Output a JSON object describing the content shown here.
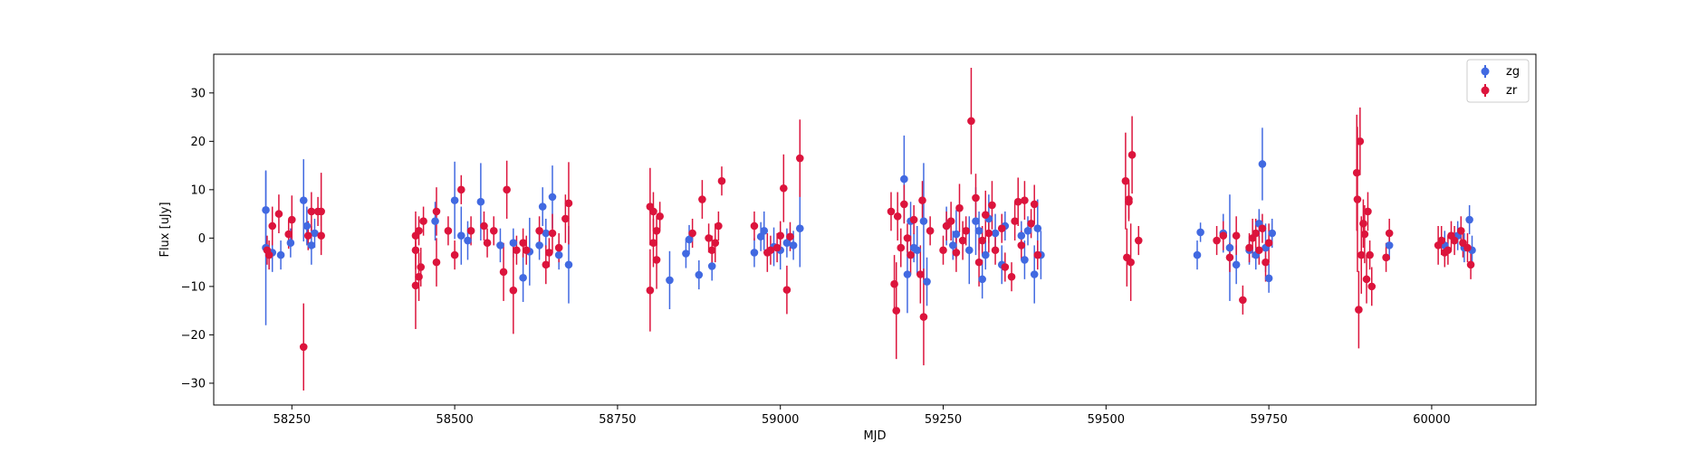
{
  "chart_data": {
    "type": "scatter",
    "title": "",
    "xlabel": "MJD",
    "ylabel": "Flux [uJy]",
    "xlim": [
      58130,
      60160
    ],
    "ylim": [
      -34.5,
      38
    ],
    "xticks": [
      58250,
      58500,
      58750,
      59000,
      59250,
      59500,
      59750,
      60000
    ],
    "yticks": [
      -30,
      -20,
      -10,
      0,
      10,
      20,
      30
    ],
    "grid": false,
    "legend_position": "top-right",
    "series": [
      {
        "name": "zg",
        "color": "#4169e1",
        "points": [
          [
            58210,
            5.8,
            8.0
          ],
          [
            58210,
            -2.0,
            16.0
          ],
          [
            58220,
            -3.0,
            4.0
          ],
          [
            58233,
            -3.5,
            3.0
          ],
          [
            58248,
            -1.0,
            3.0
          ],
          [
            58268,
            7.8,
            8.5
          ],
          [
            58273,
            2.5,
            4.0
          ],
          [
            58280,
            -1.5,
            4.0
          ],
          [
            58285,
            1.0,
            3.0
          ],
          [
            58470,
            3.5,
            4.0
          ],
          [
            58500,
            7.8,
            8.0
          ],
          [
            58510,
            0.5,
            6.0
          ],
          [
            58520,
            -0.5,
            4.0
          ],
          [
            58540,
            7.5,
            8.0
          ],
          [
            58570,
            -1.5,
            3.5
          ],
          [
            58590,
            -1.0,
            3.0
          ],
          [
            58605,
            -8.2,
            5.0
          ],
          [
            58615,
            -2.8,
            7.0
          ],
          [
            58630,
            -1.5,
            3.0
          ],
          [
            58635,
            6.5,
            4.0
          ],
          [
            58640,
            1.0,
            3.0
          ],
          [
            58650,
            8.5,
            6.5
          ],
          [
            58660,
            -3.5,
            3.0
          ],
          [
            58675,
            -5.5,
            8.0
          ],
          [
            58830,
            -8.7,
            6.0
          ],
          [
            58855,
            -3.2,
            3.0
          ],
          [
            58860,
            -0.3,
            3.0
          ],
          [
            58875,
            -7.6,
            3.0
          ],
          [
            58895,
            -5.8,
            3.0
          ],
          [
            58960,
            -3.0,
            3.0
          ],
          [
            58970,
            0.3,
            3.0
          ],
          [
            58975,
            1.5,
            4.0
          ],
          [
            58990,
            -1.8,
            4.0
          ],
          [
            59000,
            -2.5,
            4.0
          ],
          [
            59010,
            -1.0,
            3.0
          ],
          [
            59020,
            -1.5,
            3.0
          ],
          [
            59030,
            2.0,
            8.0
          ],
          [
            59190,
            12.2,
            9.0
          ],
          [
            59195,
            -7.5,
            8.0
          ],
          [
            59200,
            3.5,
            4.0
          ],
          [
            59205,
            -2.0,
            3.0
          ],
          [
            59210,
            -2.5,
            5.0
          ],
          [
            59220,
            3.5,
            12.0
          ],
          [
            59225,
            -9.0,
            5.0
          ],
          [
            59255,
            2.5,
            4.0
          ],
          [
            59265,
            -1.5,
            3.0
          ],
          [
            59270,
            0.8,
            5.0
          ],
          [
            59290,
            -2.5,
            7.0
          ],
          [
            59300,
            3.5,
            7.0
          ],
          [
            59305,
            1.5,
            4.0
          ],
          [
            59310,
            -8.5,
            4.0
          ],
          [
            59315,
            -3.5,
            3.0
          ],
          [
            59320,
            4.0,
            5.0
          ],
          [
            59330,
            1.0,
            4.0
          ],
          [
            59340,
            -5.5,
            4.0
          ],
          [
            59345,
            2.5,
            3.0
          ],
          [
            59370,
            0.5,
            3.0
          ],
          [
            59375,
            -4.5,
            4.0
          ],
          [
            59380,
            1.5,
            3.0
          ],
          [
            59390,
            -7.5,
            6.0
          ],
          [
            59395,
            2.0,
            6.0
          ],
          [
            59400,
            -3.5,
            5.0
          ],
          [
            59640,
            -3.5,
            3.0
          ],
          [
            59645,
            1.2,
            2.0
          ],
          [
            59680,
            1.0,
            4.0
          ],
          [
            59690,
            -2.0,
            11.0
          ],
          [
            59700,
            -5.5,
            4.0
          ],
          [
            59720,
            -2.5,
            3.0
          ],
          [
            59730,
            -3.5,
            3.0
          ],
          [
            59735,
            3.0,
            3.0
          ],
          [
            59740,
            15.3,
            7.5
          ],
          [
            59745,
            -2.0,
            5.0
          ],
          [
            59750,
            -8.3,
            3.0
          ],
          [
            59755,
            1.0,
            3.0
          ],
          [
            59935,
            -1.5,
            3.0
          ],
          [
            60020,
            -1.5,
            3.0
          ],
          [
            60040,
            0.5,
            3.0
          ],
          [
            60050,
            -2.0,
            3.0
          ],
          [
            60058,
            3.8,
            3.0
          ],
          [
            60062,
            -2.5,
            3.0
          ]
        ]
      },
      {
        "name": "zr",
        "color": "#dc143c",
        "points": [
          [
            58212,
            -2.5,
            3.0
          ],
          [
            58215,
            -3.5,
            3.0
          ],
          [
            58220,
            2.5,
            4.0
          ],
          [
            58230,
            5.0,
            4.0
          ],
          [
            58245,
            0.8,
            3.0
          ],
          [
            58250,
            3.8,
            5.0
          ],
          [
            58268,
            -22.5,
            9.0
          ],
          [
            58275,
            0.5,
            3.0
          ],
          [
            58280,
            5.5,
            4.0
          ],
          [
            58290,
            5.5,
            3.0
          ],
          [
            58295,
            0.5,
            4.0
          ],
          [
            58295,
            5.5,
            8.0
          ],
          [
            58440,
            -9.8,
            9.0
          ],
          [
            58440,
            -2.5,
            4.0
          ],
          [
            58440,
            0.5,
            5.0
          ],
          [
            58445,
            1.5,
            3.0
          ],
          [
            58445,
            -8.0,
            5.0
          ],
          [
            58448,
            -6.0,
            4.0
          ],
          [
            58452,
            3.5,
            3.0
          ],
          [
            58472,
            5.5,
            5.0
          ],
          [
            58472,
            -5.0,
            5.0
          ],
          [
            58490,
            1.5,
            3.0
          ],
          [
            58500,
            -3.5,
            3.0
          ],
          [
            58510,
            10.0,
            3.0
          ],
          [
            58525,
            1.5,
            3.0
          ],
          [
            58545,
            2.5,
            3.0
          ],
          [
            58550,
            -1.0,
            3.0
          ],
          [
            58560,
            1.5,
            3.0
          ],
          [
            58575,
            -7.0,
            6.0
          ],
          [
            58580,
            10.0,
            6.0
          ],
          [
            58590,
            -10.8,
            9.0
          ],
          [
            58595,
            -2.5,
            3.0
          ],
          [
            58605,
            -1.0,
            3.0
          ],
          [
            58610,
            -2.5,
            3.0
          ],
          [
            58630,
            1.5,
            3.0
          ],
          [
            58640,
            -5.5,
            4.0
          ],
          [
            58645,
            -3.0,
            3.0
          ],
          [
            58650,
            1.0,
            4.0
          ],
          [
            58660,
            -2.0,
            3.0
          ],
          [
            58670,
            4.0,
            5.0
          ],
          [
            58675,
            7.2,
            8.5
          ],
          [
            58800,
            6.5,
            8.0
          ],
          [
            58800,
            -10.8,
            8.5
          ],
          [
            58805,
            5.5,
            4.0
          ],
          [
            58805,
            -1.0,
            5.0
          ],
          [
            58810,
            1.5,
            3.0
          ],
          [
            58810,
            -4.5,
            6.0
          ],
          [
            58815,
            4.5,
            3.0
          ],
          [
            58865,
            1.0,
            3.0
          ],
          [
            58880,
            8.0,
            4.0
          ],
          [
            58890,
            0.0,
            3.0
          ],
          [
            58895,
            -2.5,
            3.0
          ],
          [
            58900,
            -1.0,
            4.0
          ],
          [
            58905,
            2.5,
            3.0
          ],
          [
            58910,
            11.8,
            3.0
          ],
          [
            58960,
            2.5,
            3.0
          ],
          [
            58980,
            -3.0,
            4.0
          ],
          [
            58985,
            -2.5,
            3.0
          ],
          [
            58995,
            -2.0,
            3.0
          ],
          [
            59000,
            0.5,
            3.0
          ],
          [
            59005,
            10.3,
            7.0
          ],
          [
            59010,
            -10.7,
            5.0
          ],
          [
            59015,
            0.3,
            3.0
          ],
          [
            59030,
            16.5,
            8.0
          ],
          [
            59170,
            5.5,
            4.0
          ],
          [
            59175,
            -9.5,
            6.0
          ],
          [
            59178,
            -15.0,
            10.0
          ],
          [
            59180,
            4.5,
            5.0
          ],
          [
            59185,
            -2.0,
            4.0
          ],
          [
            59190,
            7.0,
            4.0
          ],
          [
            59195,
            0.0,
            3.0
          ],
          [
            59200,
            -3.5,
            4.0
          ],
          [
            59205,
            3.8,
            3.0
          ],
          [
            59215,
            -7.5,
            6.0
          ],
          [
            59218,
            7.8,
            4.0
          ],
          [
            59220,
            -16.3,
            10.0
          ],
          [
            59230,
            1.5,
            3.0
          ],
          [
            59250,
            -2.5,
            3.0
          ],
          [
            59255,
            2.5,
            3.0
          ],
          [
            59262,
            3.5,
            4.0
          ],
          [
            59270,
            -3.0,
            4.0
          ],
          [
            59275,
            6.2,
            5.0
          ],
          [
            59280,
            -0.5,
            4.0
          ],
          [
            59285,
            1.5,
            3.0
          ],
          [
            59293,
            24.2,
            11.0
          ],
          [
            59300,
            8.3,
            5.0
          ],
          [
            59305,
            -5.0,
            5.0
          ],
          [
            59310,
            -0.5,
            3.0
          ],
          [
            59315,
            4.8,
            5.0
          ],
          [
            59320,
            1.0,
            4.0
          ],
          [
            59325,
            6.8,
            5.0
          ],
          [
            59330,
            -2.5,
            3.0
          ],
          [
            59340,
            2.0,
            3.0
          ],
          [
            59345,
            -6.0,
            3.0
          ],
          [
            59355,
            -8.0,
            3.0
          ],
          [
            59360,
            3.5,
            4.0
          ],
          [
            59365,
            7.5,
            5.0
          ],
          [
            59370,
            -1.5,
            3.0
          ],
          [
            59375,
            7.8,
            4.0
          ],
          [
            59385,
            3.0,
            3.0
          ],
          [
            59390,
            7.0,
            4.0
          ],
          [
            59395,
            -3.5,
            3.0
          ],
          [
            59530,
            11.8,
            10.0
          ],
          [
            59532,
            -4.0,
            6.0
          ],
          [
            59535,
            8.0,
            4.0
          ],
          [
            59535,
            7.5,
            4.0
          ],
          [
            59538,
            -5.0,
            8.0
          ],
          [
            59540,
            17.2,
            8.0
          ],
          [
            59550,
            -0.5,
            3.0
          ],
          [
            59670,
            -0.5,
            3.0
          ],
          [
            59680,
            0.5,
            3.0
          ],
          [
            59690,
            -4.0,
            3.0
          ],
          [
            59700,
            0.5,
            4.0
          ],
          [
            59710,
            -12.8,
            3.0
          ],
          [
            59720,
            -2.0,
            3.0
          ],
          [
            59725,
            0.0,
            4.0
          ],
          [
            59730,
            1.0,
            3.0
          ],
          [
            59735,
            -2.5,
            3.0
          ],
          [
            59740,
            2.0,
            3.0
          ],
          [
            59745,
            -5.0,
            4.0
          ],
          [
            59750,
            -1.0,
            4.0
          ],
          [
            59885,
            13.5,
            12.0
          ],
          [
            59886,
            8.0,
            15.0
          ],
          [
            59888,
            -14.8,
            8.0
          ],
          [
            59890,
            20.0,
            7.0
          ],
          [
            59892,
            -3.5,
            8.0
          ],
          [
            59895,
            3.0,
            5.0
          ],
          [
            59897,
            0.8,
            6.0
          ],
          [
            59900,
            -8.5,
            5.0
          ],
          [
            59902,
            5.5,
            4.0
          ],
          [
            59905,
            -3.5,
            3.0
          ],
          [
            59908,
            -10.0,
            4.0
          ],
          [
            59930,
            -4.0,
            3.0
          ],
          [
            59935,
            1.0,
            3.0
          ],
          [
            60010,
            -1.5,
            4.0
          ],
          [
            60015,
            -0.5,
            3.0
          ],
          [
            60020,
            -3.0,
            3.0
          ],
          [
            60025,
            -2.5,
            3.0
          ],
          [
            60030,
            0.5,
            3.0
          ],
          [
            60035,
            -0.5,
            3.0
          ],
          [
            60045,
            1.5,
            3.0
          ],
          [
            60048,
            -1.0,
            3.0
          ],
          [
            60055,
            -2.0,
            3.0
          ],
          [
            60060,
            -5.5,
            3.0
          ]
        ]
      }
    ]
  }
}
